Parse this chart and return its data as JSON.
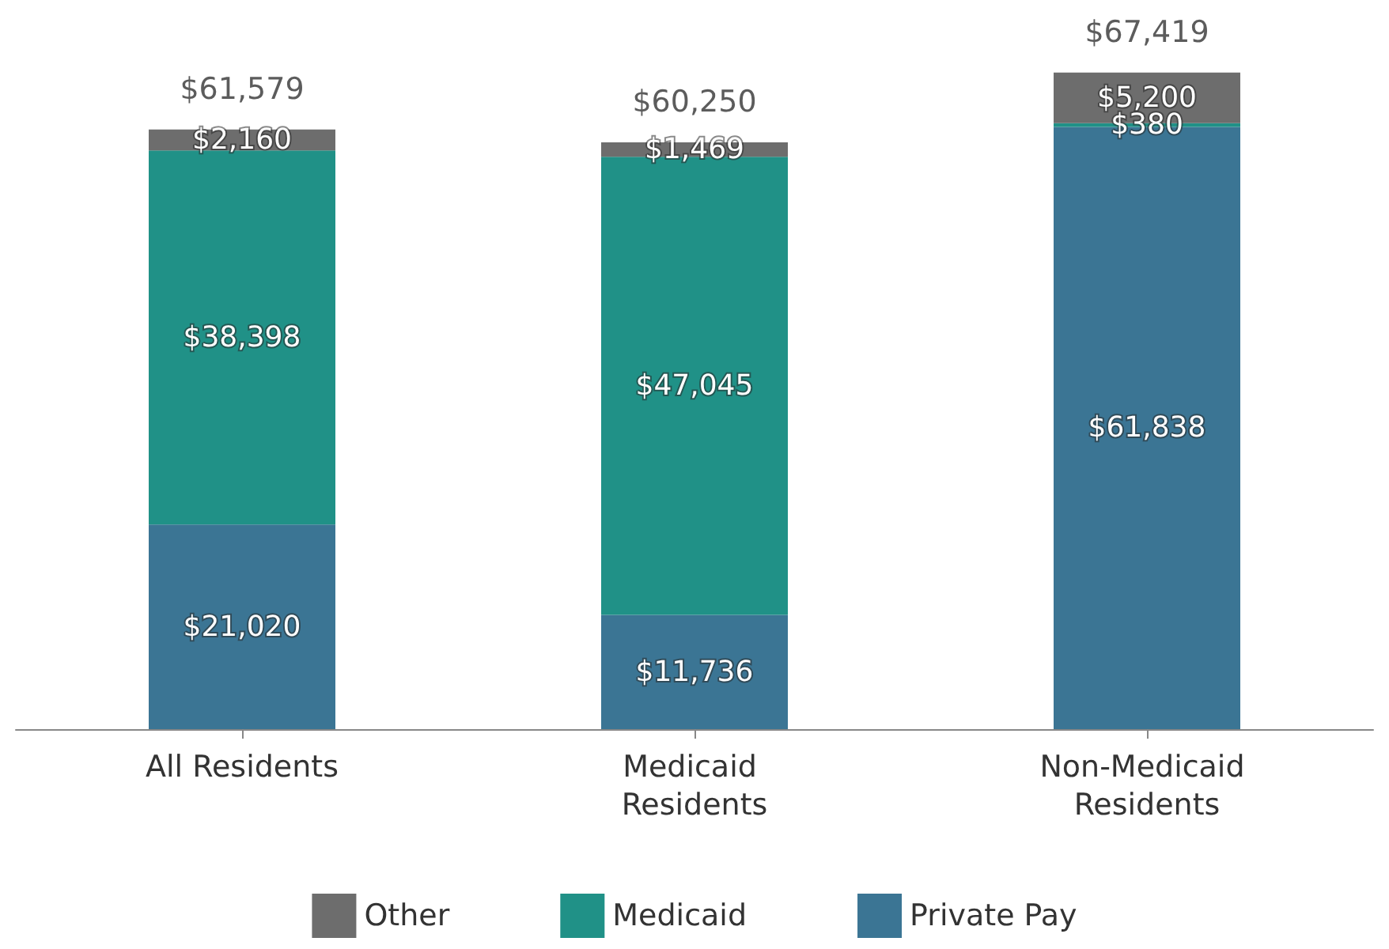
{
  "chart_data": {
    "type": "bar",
    "stacked": true,
    "categories": [
      "All Residents",
      "Medicaid Residents",
      "Non-Medicaid Residents"
    ],
    "series": [
      {
        "name": "Private Pay",
        "color": "#3b7594",
        "values": [
          21020,
          11736,
          61838
        ],
        "value_labels": [
          "$21,020",
          "$11,736",
          "$61,838"
        ]
      },
      {
        "name": "Medicaid",
        "color": "#209187",
        "values": [
          38398,
          47045,
          380
        ],
        "value_labels": [
          "$38,398",
          "$47,045",
          "$380"
        ]
      },
      {
        "name": "Other",
        "color": "#6d6d6d",
        "values": [
          2160,
          1469,
          5200
        ],
        "value_labels": [
          "$2,160",
          "$1,469",
          "$5,200"
        ]
      }
    ],
    "totals": [
      "$61,579",
      "$60,250",
      "$67,419"
    ],
    "legend": "bottom"
  }
}
